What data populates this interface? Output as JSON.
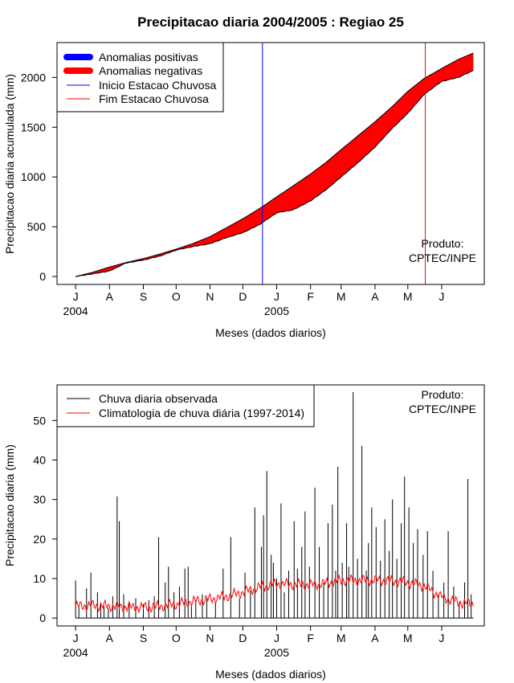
{
  "figure": {
    "title": "Precipitacao diaria 2004/2005 : Regiao 25"
  },
  "chart_data": [
    {
      "type": "area",
      "title": "Precipitacao diaria 2004/2005 : Regiao 25",
      "xlabel": "Meses (dados diarios)",
      "ylabel": "Precipitacao diaria acumulada (mm)",
      "x_unit": "day index (0 = 1 Jul 2004)",
      "xlim": [
        -17,
        374
      ],
      "ylim": [
        -80,
        2350
      ],
      "yticks": [
        0,
        500,
        1000,
        1500,
        2000
      ],
      "month_ticks": [
        {
          "label": "J",
          "day": 0
        },
        {
          "label": "A",
          "day": 31
        },
        {
          "label": "S",
          "day": 62
        },
        {
          "label": "O",
          "day": 92
        },
        {
          "label": "N",
          "day": 123
        },
        {
          "label": "D",
          "day": 153
        },
        {
          "label": "J",
          "day": 184
        },
        {
          "label": "F",
          "day": 215
        },
        {
          "label": "M",
          "day": 243
        },
        {
          "label": "A",
          "day": 274
        },
        {
          "label": "M",
          "day": 304
        },
        {
          "label": "J",
          "day": 335
        }
      ],
      "year_labels": [
        {
          "label": "2004",
          "day": 0
        },
        {
          "label": "2005",
          "day": 184
        }
      ],
      "climatology_cumulative": {
        "days": [
          0,
          15,
          31,
          46,
          62,
          77,
          92,
          107,
          123,
          138,
          153,
          168,
          184,
          199,
          215,
          229,
          243,
          258,
          274,
          289,
          304,
          319,
          335,
          350,
          364
        ],
        "values": [
          0,
          40,
          95,
          140,
          180,
          225,
          275,
          330,
          400,
          490,
          580,
          680,
          800,
          910,
          1030,
          1145,
          1275,
          1410,
          1555,
          1700,
          1860,
          1990,
          2090,
          2180,
          2245
        ]
      },
      "observed_cumulative": {
        "days": [
          0,
          15,
          31,
          46,
          62,
          77,
          92,
          107,
          123,
          138,
          153,
          168,
          184,
          199,
          215,
          229,
          243,
          258,
          274,
          289,
          304,
          319,
          335,
          350,
          364
        ],
        "values": [
          0,
          25,
          55,
          135,
          165,
          205,
          265,
          300,
          330,
          390,
          440,
          520,
          640,
          670,
          760,
          870,
          1000,
          1140,
          1300,
          1480,
          1640,
          1830,
          1960,
          2000,
          2070
        ]
      },
      "rainy_season_start_day": 171,
      "rainy_season_end_day": 320,
      "legend": [
        {
          "label": "Anomalias positivas",
          "color": "#0000ff",
          "style": "thick"
        },
        {
          "label": "Anomalias negativas",
          "color": "#ff0000",
          "style": "thick"
        },
        {
          "label": "Inicio Estacao Chuvosa",
          "color": "#0000ff",
          "style": "thin"
        },
        {
          "label": "Fim Estacao Chuvosa",
          "color": "#ff0000",
          "style": "thin"
        }
      ],
      "legend_position": "top-left",
      "annotation": [
        "Produto:",
        "CPTEC/INPE"
      ]
    },
    {
      "type": "bar",
      "xlabel": "Meses (dados diarios)",
      "ylabel": "Precipitacao diaria (mm)",
      "x_unit": "day index (0 = 1 Jul 2004)",
      "xlim": [
        -17,
        374
      ],
      "ylim": [
        -2,
        59
      ],
      "yticks": [
        0,
        10,
        20,
        30,
        40,
        50
      ],
      "month_ticks": [
        {
          "label": "J",
          "day": 0
        },
        {
          "label": "A",
          "day": 31
        },
        {
          "label": "S",
          "day": 62
        },
        {
          "label": "O",
          "day": 92
        },
        {
          "label": "N",
          "day": 123
        },
        {
          "label": "D",
          "day": 153
        },
        {
          "label": "J",
          "day": 184
        },
        {
          "label": "F",
          "day": 215
        },
        {
          "label": "M",
          "day": 243
        },
        {
          "label": "A",
          "day": 274
        },
        {
          "label": "M",
          "day": 304
        },
        {
          "label": "J",
          "day": 335
        }
      ],
      "year_labels": [
        {
          "label": "2004",
          "day": 0
        },
        {
          "label": "2005",
          "day": 184
        }
      ],
      "observed_daily": {
        "days": [
          0,
          3,
          10,
          14,
          20,
          23,
          26,
          30,
          34,
          38,
          40,
          44,
          49,
          55,
          62,
          67,
          72,
          76,
          82,
          85,
          90,
          95,
          100,
          103,
          106,
          110,
          116,
          120,
          128,
          135,
          142,
          150,
          155,
          160,
          164,
          170,
          172,
          175,
          179,
          181,
          184,
          188,
          191,
          195,
          200,
          203,
          207,
          210,
          214,
          219,
          223,
          227,
          231,
          235,
          238,
          240,
          244,
          248,
          250,
          254,
          258,
          262,
          266,
          268,
          271,
          275,
          279,
          283,
          287,
          290,
          294,
          298,
          301,
          305,
          309,
          313,
          318,
          322,
          327,
          332,
          337,
          341,
          346,
          351,
          356,
          359,
          362
        ],
        "values": [
          9.5,
          3,
          7.5,
          11.5,
          6.5,
          4,
          3,
          2.5,
          5.5,
          30.8,
          24.5,
          6,
          4,
          5,
          3.5,
          4.5,
          5.5,
          20.5,
          9,
          13,
          6.5,
          8,
          12.5,
          13,
          3,
          4.5,
          6,
          5,
          4,
          12.5,
          20.5,
          5,
          11.5,
          7,
          28,
          18,
          26,
          37.2,
          16,
          14,
          10,
          29,
          6.5,
          12,
          24.5,
          12.5,
          18,
          27,
          13,
          33,
          18,
          9,
          24,
          28.7,
          12,
          38.3,
          14,
          24,
          13,
          57.2,
          15,
          43.6,
          12,
          19,
          28,
          23,
          14.5,
          25,
          17,
          30,
          15,
          24,
          35.8,
          28,
          19,
          22.5,
          16,
          22,
          12,
          6,
          9,
          22,
          8,
          4,
          9,
          35.2,
          6
        ]
      },
      "climatology_daily": {
        "days": [
          0,
          15,
          31,
          46,
          62,
          77,
          92,
          107,
          123,
          138,
          153,
          168,
          184,
          199,
          215,
          229,
          243,
          258,
          274,
          289,
          304,
          319,
          335,
          350,
          364
        ],
        "values": [
          3,
          3.2,
          3,
          2.8,
          2.7,
          3,
          3.5,
          4.2,
          4.8,
          5.5,
          6.5,
          7.8,
          8.7,
          8.5,
          8.4,
          8.8,
          9.5,
          9.5,
          9.6,
          9.4,
          9.0,
          8.1,
          5.3,
          4,
          3.5
        ]
      },
      "legend": [
        {
          "label": "Chuva diaria observada",
          "color": "#000000"
        },
        {
          "label": "Climatologia de chuva diária (1997-2014)",
          "color": "#ff0000"
        }
      ],
      "legend_position": "top-left",
      "annotation": [
        "Produto:",
        "CPTEC/INPE"
      ]
    }
  ]
}
